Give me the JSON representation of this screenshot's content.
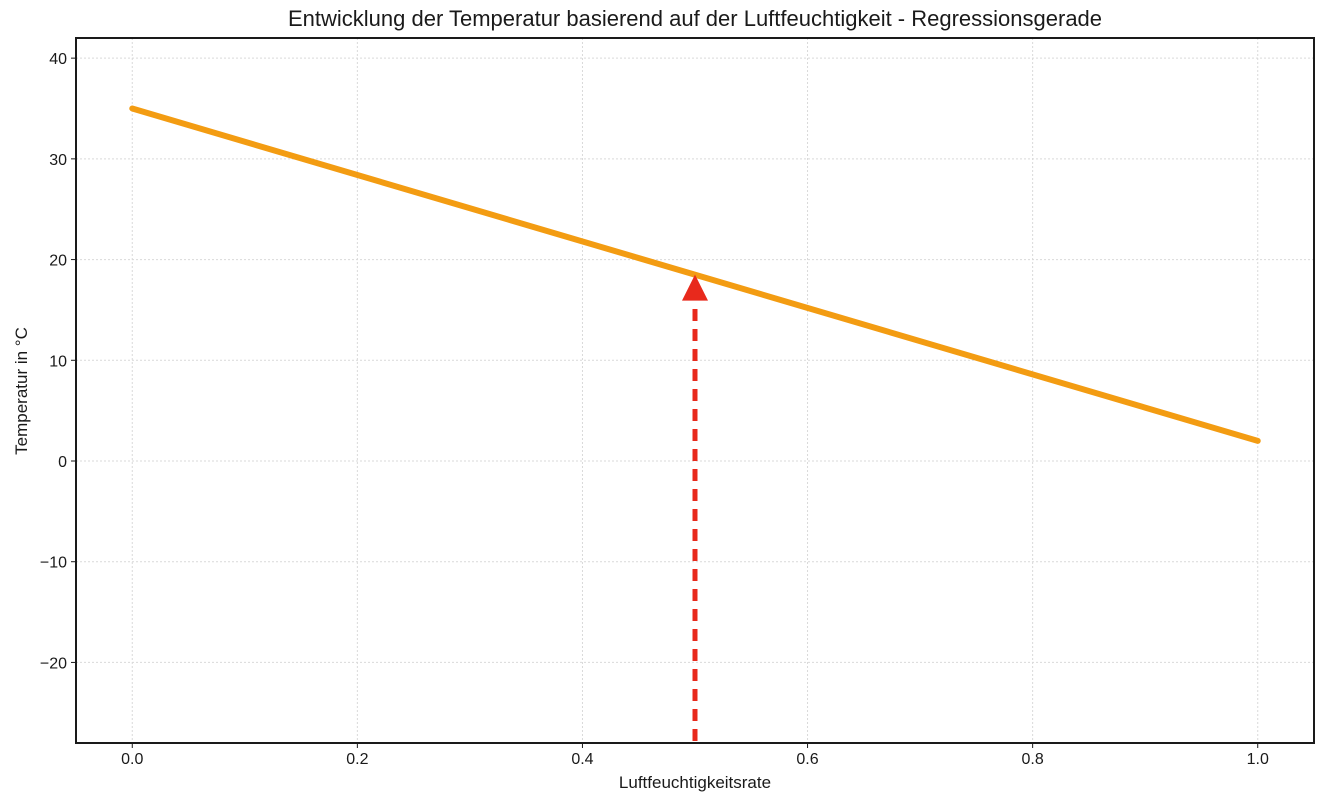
{
  "chart_data": {
    "type": "line",
    "title": "Entwicklung der Temperatur basierend auf der Luftfeuchtigkeit - Regressionsgerade",
    "xlabel": "Luftfeuchtigkeitsrate",
    "ylabel": "Temperatur in °C",
    "xlim": [
      -0.05,
      1.05
    ],
    "ylim": [
      -28,
      42
    ],
    "xticks": [
      0.0,
      0.2,
      0.4,
      0.6,
      0.8,
      1.0
    ],
    "xtick_labels": [
      "0.0",
      "0.2",
      "0.4",
      "0.6",
      "0.8",
      "1.0"
    ],
    "yticks": [
      -20,
      -10,
      0,
      10,
      20,
      30,
      40
    ],
    "ytick_labels": [
      "−20",
      "−10",
      "0",
      "10",
      "20",
      "30",
      "40"
    ],
    "grid": true,
    "series": [
      {
        "x": [
          0.0,
          1.0
        ],
        "y": [
          35.0,
          2.0
        ],
        "color": "#f39c12"
      }
    ],
    "annotations": [
      {
        "type": "arrow",
        "style": "dashed",
        "color": "#e8291c",
        "x": 0.5,
        "y_from": -28,
        "y_to": 18.5
      }
    ]
  }
}
